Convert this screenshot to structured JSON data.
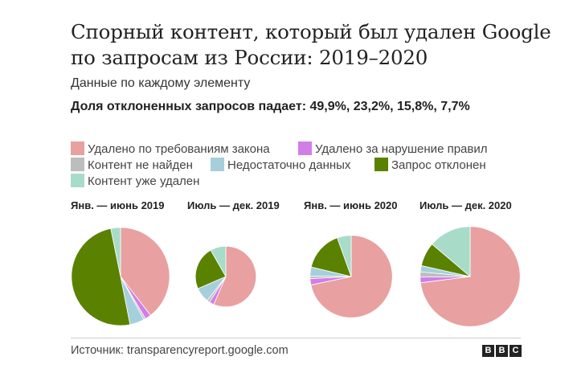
{
  "header": {
    "title": "Спорный контент, который был удален Google по запросам из России: 2019–2020",
    "subtitle": "Данные по каждому элементу",
    "note": "Доля отклоненных запросов падает: 49,9%, 23,2%, 15,8%, 7,7%"
  },
  "legend": [
    {
      "label": "Удалено по требованиям закона",
      "color": "#e8a0a0"
    },
    {
      "label": "Удалено за нарушение правил",
      "color": "#d17ee8"
    },
    {
      "label": "Контент не найден",
      "color": "#bdbdbd"
    },
    {
      "label": "Недостаточно данных",
      "color": "#a6cfdc"
    },
    {
      "label": "Запрос отклонен",
      "color": "#5a8200"
    },
    {
      "label": "Контент уже удален",
      "color": "#a8dcc9"
    }
  ],
  "chart_data": {
    "type": "pie",
    "title": "Спорный контент, который был удален Google по запросам из России: 2019–2020",
    "categories": [
      "Удалено по требованиям закона",
      "Удалено за нарушение правил",
      "Контент не найден",
      "Недостаточно данных",
      "Запрос отклонен",
      "Контент уже удален"
    ],
    "pies": [
      {
        "label": "Янв. — июнь 2019",
        "values": [
          39.5,
          2.0,
          0.6,
          4.8,
          49.9,
          3.2
        ]
      },
      {
        "label": "Июль — дек. 2019",
        "values": [
          56.5,
          2.5,
          1.5,
          8.0,
          23.2,
          8.3
        ]
      },
      {
        "label": "Янв. — июнь 2020",
        "values": [
          71.7,
          2.5,
          1.0,
          3.5,
          15.8,
          5.5
        ]
      },
      {
        "label": "Июль — дек. 2020",
        "values": [
          73.0,
          1.8,
          1.7,
          2.0,
          7.7,
          13.8
        ]
      }
    ],
    "relative_size": [
      1.0,
      0.62,
      0.84,
      1.02
    ]
  },
  "footer": {
    "source": "Источник: transparencyreport.google.com",
    "logo": [
      "B",
      "B",
      "C"
    ]
  }
}
